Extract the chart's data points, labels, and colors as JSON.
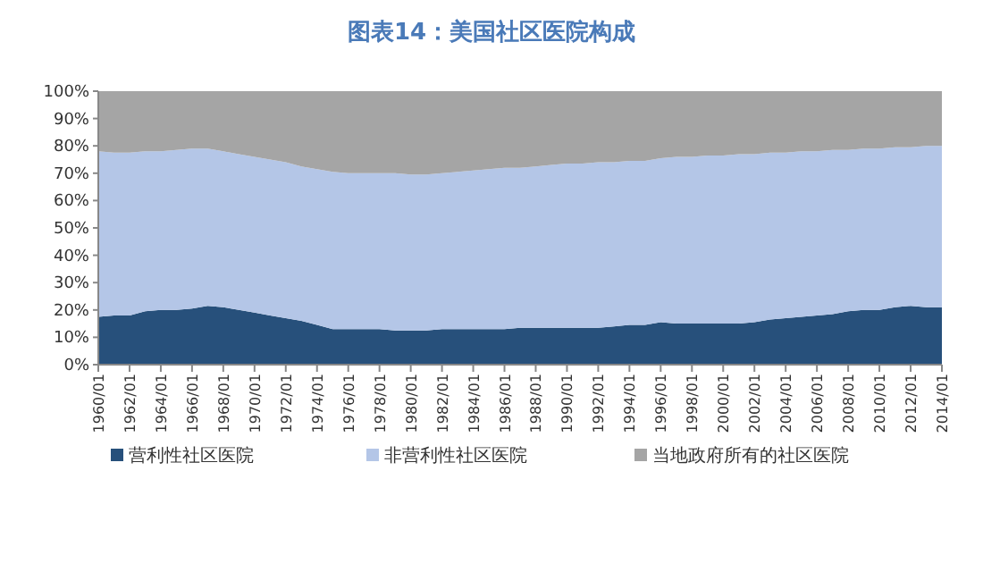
{
  "chart_data": {
    "type": "area",
    "stacked": true,
    "title": "图表14：美国社区医院构成",
    "categories": [
      "1960/01",
      null,
      "1962/01",
      null,
      "1964/01",
      null,
      "1966/01",
      null,
      "1968/01",
      null,
      "1970/01",
      null,
      "1972/01",
      null,
      "1974/01",
      null,
      "1976/01",
      null,
      "1978/01",
      null,
      "1980/01",
      null,
      "1982/01",
      null,
      "1984/01",
      null,
      "1986/01",
      null,
      "1988/01",
      null,
      "1990/01",
      null,
      "1992/01",
      null,
      "1994/01",
      null,
      "1996/01",
      null,
      "1998/01",
      null,
      "2000/01",
      null,
      "2002/01",
      null,
      "2004/01",
      null,
      "2006/01",
      null,
      "2008/01",
      null,
      "2010/01",
      null,
      "2012/01",
      null,
      "2014/01"
    ],
    "series": [
      {
        "name": "营利性社区医院",
        "color": "#27507b",
        "values": [
          17.5,
          18,
          18,
          19.5,
          20,
          20,
          20.5,
          21.5,
          21,
          20,
          19,
          18,
          17,
          16,
          14.5,
          13,
          13,
          13,
          13,
          12.5,
          12.5,
          12.5,
          13,
          13,
          13,
          13,
          13,
          13.5,
          13.5,
          13.5,
          13.5,
          13.5,
          13.5,
          14,
          14.5,
          14.5,
          15.5,
          15,
          15,
          15,
          15,
          15,
          15.5,
          16.5,
          17,
          17.5,
          18,
          18.5,
          19.5,
          20,
          20,
          21,
          21.5,
          21,
          21
        ]
      },
      {
        "name": "非营利性社区医院",
        "color": "#b4c6e7",
        "values": [
          60.5,
          59.5,
          59.5,
          58.5,
          58,
          58.5,
          58.5,
          57.5,
          57,
          57,
          57,
          57,
          57,
          56.5,
          57,
          57.5,
          57,
          57,
          57,
          57.5,
          57,
          57,
          57,
          57.5,
          58,
          58.5,
          59,
          58.5,
          59,
          59.5,
          60,
          60,
          60.5,
          60,
          60,
          60,
          60,
          61,
          61,
          61.5,
          61.5,
          62,
          61.5,
          61,
          60.5,
          60.5,
          60,
          60,
          59,
          59,
          59,
          58.5,
          58,
          59,
          59
        ]
      },
      {
        "name": "当地政府所有的社区医院",
        "color": "#a5a5a5",
        "values": [
          22,
          22.5,
          22.5,
          22,
          22,
          21.5,
          21,
          21,
          22,
          23,
          24,
          25,
          26,
          27.5,
          28.5,
          29.5,
          30,
          30,
          30,
          30,
          30.5,
          30.5,
          30,
          29.5,
          29,
          28.5,
          28,
          28,
          27.5,
          27,
          26.5,
          26.5,
          26,
          26,
          25.5,
          25.5,
          24.5,
          24,
          24,
          23.5,
          23.5,
          23,
          23,
          22.5,
          22.5,
          22,
          22,
          21.5,
          21.5,
          21,
          21,
          20.5,
          20.5,
          20,
          20
        ]
      }
    ],
    "ylim": [
      0,
      100
    ],
    "yticks": [
      {
        "value": 0,
        "label": "0%"
      },
      {
        "value": 10,
        "label": "10%"
      },
      {
        "value": 20,
        "label": "20%"
      },
      {
        "value": 30,
        "label": "30%"
      },
      {
        "value": 40,
        "label": "40%"
      },
      {
        "value": 50,
        "label": "50%"
      },
      {
        "value": 60,
        "label": "60%"
      },
      {
        "value": 70,
        "label": "70%"
      },
      {
        "value": 80,
        "label": "80%"
      },
      {
        "value": 90,
        "label": "90%"
      },
      {
        "value": 100,
        "label": "100%"
      }
    ],
    "legend": "bottom"
  }
}
